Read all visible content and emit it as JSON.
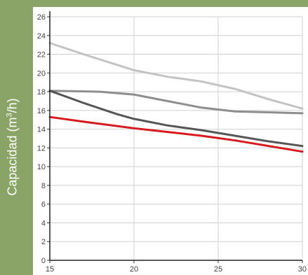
{
  "chart_data": {
    "type": "line",
    "title": "",
    "ylabel": {
      "prefix": "Capacidad (m",
      "sup": "3",
      "suffix": "/h)"
    },
    "xlabel": "",
    "xlim": [
      15,
      30
    ],
    "ylim": [
      0,
      26
    ],
    "x_ticks": [
      "15",
      "20",
      "25",
      "30"
    ],
    "y_ticks": [
      "0",
      "2",
      "4",
      "6",
      "8",
      "10",
      "12",
      "14",
      "16",
      "18",
      "20",
      "22",
      "24",
      "26"
    ],
    "grid": true,
    "series": [
      {
        "color": "#c3c3c3",
        "x": [
          15,
          17,
          20,
          22,
          24,
          26,
          28,
          30
        ],
        "y": [
          23.2,
          22.0,
          20.3,
          19.6,
          19.1,
          18.3,
          17.2,
          16.2
        ]
      },
      {
        "color": "#8e8e8e",
        "x": [
          15,
          18,
          20,
          22,
          24,
          26,
          28,
          30
        ],
        "y": [
          18.1,
          18.0,
          17.7,
          17.0,
          16.3,
          15.9,
          15.8,
          15.7
        ]
      },
      {
        "color": "#555555",
        "x": [
          15,
          17,
          19,
          20,
          22,
          24,
          26,
          28,
          30
        ],
        "y": [
          18.1,
          16.8,
          15.6,
          15.1,
          14.4,
          13.9,
          13.3,
          12.7,
          12.2
        ]
      },
      {
        "color": "#d61a1f",
        "x": [
          15,
          17,
          20,
          22,
          24,
          26,
          28,
          30
        ],
        "y": [
          15.3,
          14.8,
          14.1,
          13.7,
          13.3,
          12.8,
          12.2,
          11.6
        ]
      }
    ]
  }
}
